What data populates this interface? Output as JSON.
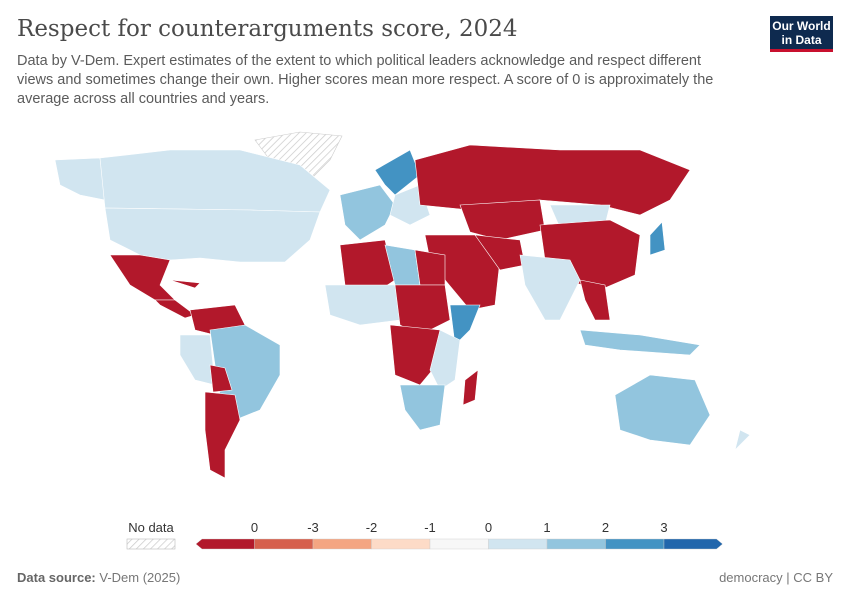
{
  "header": {
    "title": "Respect for counterarguments score, 2024",
    "subtitle": "Data by V-Dem. Expert estimates of the extent to which political leaders acknowledge and respect different views and sometimes change their own. Higher scores mean more respect. A score of 0 is approximately the average across all countries and years.",
    "logo": "Our World in Data"
  },
  "legend": {
    "no_data_label": "No data",
    "bins": [
      {
        "label": "0",
        "color": "#b2182b"
      },
      {
        "label": "-3",
        "color": "#d6604d"
      },
      {
        "label": "-2",
        "color": "#f4a582"
      },
      {
        "label": "-1",
        "color": "#fddbc7"
      },
      {
        "label": "0",
        "color": "#f7f7f7"
      },
      {
        "label": "1",
        "color": "#d1e5f0"
      },
      {
        "label": "2",
        "color": "#92c5de"
      },
      {
        "label": "3",
        "color": "#4393c3"
      },
      {
        "label": "",
        "color": "#2166ac"
      }
    ]
  },
  "colors": {
    "red": "#b2182b",
    "light": "#d1e5f0",
    "mid": "#92c5de",
    "blue": "#4393c3",
    "nodata": "#eeeeee"
  },
  "footer": {
    "source_label": "Data source:",
    "source": "V-Dem (2025)",
    "license": "democracy | CC BY"
  }
}
